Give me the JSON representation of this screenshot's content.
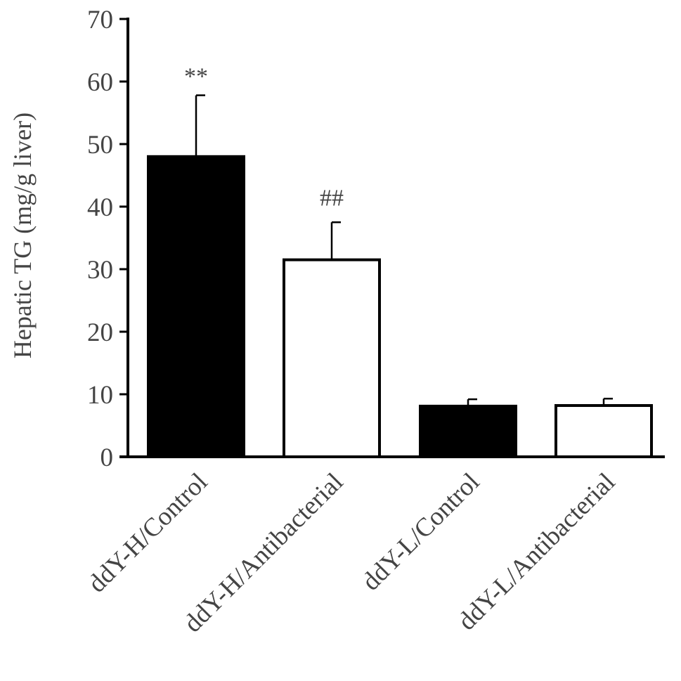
{
  "chart_data": {
    "type": "bar",
    "ylabel": "Hepatic TG (mg/g liver)",
    "xlabel": "",
    "ylim": [
      0,
      70
    ],
    "yticks": [
      0,
      10,
      20,
      30,
      40,
      50,
      60,
      70
    ],
    "grid": false,
    "categories": [
      "ddY-H/Control",
      "ddY-H/Antibacterial",
      "ddY-L/Control",
      "ddY-L/Antibacterial"
    ],
    "values": [
      48,
      31.5,
      8.1,
      8.2
    ],
    "errors": [
      9.8,
      6.0,
      1.1,
      1.1
    ],
    "bar_fills": [
      "#000000",
      "#ffffff",
      "#000000",
      "#ffffff"
    ],
    "bar_stroke": "#000000",
    "annotations": [
      "**",
      "##",
      "",
      ""
    ]
  }
}
